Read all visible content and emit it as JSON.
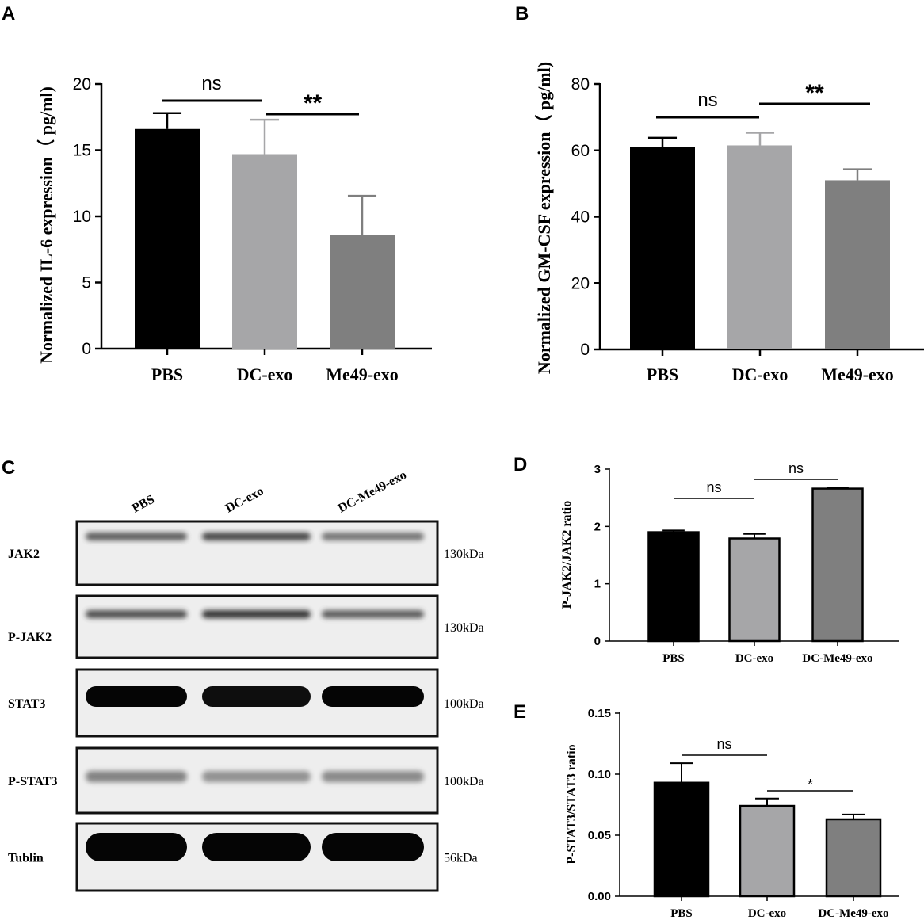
{
  "colors": {
    "pbs": "#000000",
    "dc_exo": "#a6a6a8",
    "me49": "#7f7f7f"
  },
  "panels": {
    "A": "A",
    "B": "B",
    "C": "C",
    "D": "D",
    "E": "E"
  },
  "chart_data": [
    {
      "id": "A",
      "type": "bar",
      "categories": [
        "PBS",
        "DC-exo",
        "Me49-exo"
      ],
      "values": [
        16.6,
        14.7,
        8.6
      ],
      "errors": [
        1.2,
        2.6,
        2.95
      ],
      "ylabel": "Normalized IL-6 expression（ pg/ml)",
      "ylim": [
        0,
        20
      ],
      "yticks": [
        0,
        5,
        10,
        15,
        20
      ],
      "ytick_labels": [
        "0",
        "5",
        "10",
        "15",
        "20"
      ],
      "significance": [
        {
          "from": 0,
          "to": 1,
          "label": "ns"
        },
        {
          "from": 1,
          "to": 2,
          "label": "**"
        }
      ]
    },
    {
      "id": "B",
      "type": "bar",
      "categories": [
        "PBS",
        "DC-exo",
        "Me49-exo"
      ],
      "values": [
        61,
        61.5,
        51
      ],
      "errors": [
        2.8,
        3.8,
        3.3
      ],
      "ylabel": "Normalized GM-CSF expression（ pg/ml)",
      "ylim": [
        0,
        80
      ],
      "yticks": [
        0,
        20,
        40,
        60,
        80
      ],
      "ytick_labels": [
        "0",
        "20",
        "40",
        "60",
        "80"
      ],
      "significance": [
        {
          "from": 0,
          "to": 1,
          "label": "ns"
        },
        {
          "from": 1,
          "to": 2,
          "label": "**"
        }
      ]
    },
    {
      "id": "D",
      "type": "bar",
      "categories": [
        "PBS",
        "DC-exo",
        "DC-Me49-exo"
      ],
      "values": [
        1.9,
        1.79,
        2.66
      ],
      "errors": [
        0.03,
        0.08,
        0.02
      ],
      "ylabel": "P-JAK2/JAK2 ratio",
      "ylim": [
        0,
        3
      ],
      "yticks": [
        0,
        1,
        2,
        3
      ],
      "ytick_labels": [
        "0",
        "1",
        "2",
        "3"
      ],
      "significance": [
        {
          "from": 0,
          "to": 1,
          "label": "ns"
        },
        {
          "from": 1,
          "to": 2,
          "label": "ns"
        }
      ]
    },
    {
      "id": "E",
      "type": "bar",
      "categories": [
        "PBS",
        "DC-exo",
        "DC-Me49-exo"
      ],
      "values": [
        0.093,
        0.074,
        0.063
      ],
      "errors": [
        0.016,
        0.006,
        0.004
      ],
      "ylabel": "P-STAT3/STAT3 ratio",
      "ylim": [
        0,
        0.15
      ],
      "yticks": [
        0,
        0.05,
        0.1,
        0.15
      ],
      "ytick_labels": [
        "0.00",
        "0.05",
        "0.10",
        "0.15"
      ],
      "significance": [
        {
          "from": 0,
          "to": 1,
          "label": "ns"
        },
        {
          "from": 1,
          "to": 2,
          "label": "*"
        }
      ]
    }
  ],
  "blot": {
    "lanes": [
      "PBS",
      "DC-exo",
      "DC-Me49-exo"
    ],
    "rows": [
      {
        "label": "JAK2",
        "mw": "130kDa",
        "intensity": [
          0.6,
          0.75,
          0.45
        ]
      },
      {
        "label": "P-JAK2",
        "mw": "130kDa",
        "intensity": [
          0.7,
          0.85,
          0.6
        ]
      },
      {
        "label": "STAT3",
        "mw": "100kDa",
        "intensity": [
          1.0,
          0.95,
          1.0
        ]
      },
      {
        "label": "P-STAT3",
        "mw": "100kDa",
        "intensity": [
          0.35,
          0.25,
          0.3
        ]
      },
      {
        "label": "Tublin",
        "mw": "56kDa",
        "intensity": [
          1.0,
          1.0,
          1.0
        ]
      }
    ]
  }
}
